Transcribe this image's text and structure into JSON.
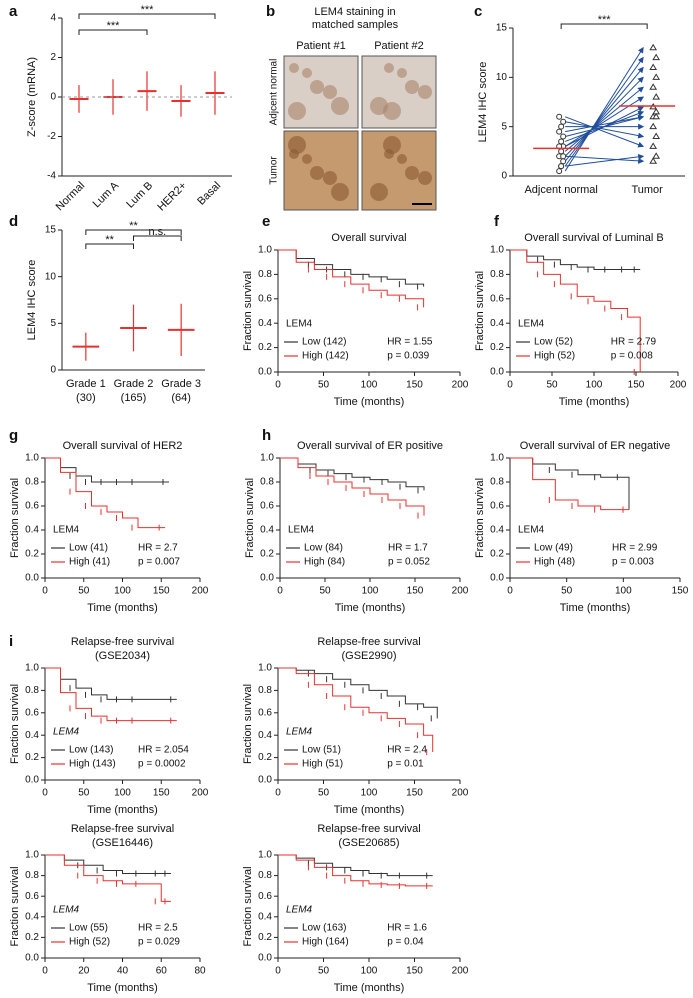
{
  "chart_data": [
    {
      "type": "dot",
      "panel": "a",
      "ylabel": "Z-score (mRNA)",
      "categories": [
        "Normal",
        "Lum A",
        "Lum B",
        "HER2+",
        "Basal"
      ],
      "values": [
        -0.1,
        0,
        0.3,
        -0.2,
        0.2
      ],
      "errors": [
        0.7,
        0.9,
        1.0,
        0.8,
        1.1
      ],
      "color": "#e8312f",
      "ylim": [
        -4,
        4
      ],
      "yticks": [
        -4,
        -2,
        0,
        2,
        4
      ],
      "annotations": [
        "***",
        "***"
      ]
    },
    {
      "type": "image",
      "panel": "b",
      "title": [
        "LEM4 staining in",
        "matched samples"
      ],
      "columns": [
        "Patient #1",
        "Patient #2"
      ],
      "rows": [
        "Adjcent normal",
        "Tumor"
      ]
    },
    {
      "type": "paired",
      "panel": "c",
      "ylabel": "LEM4 IHC score",
      "categories": [
        "Adjcent normal",
        "Tumor"
      ],
      "values_before": [
        0.5,
        1,
        1.5,
        2,
        2.5,
        3,
        3,
        3.5,
        4,
        4.5,
        5,
        5.5,
        6,
        1,
        2
      ],
      "values_after": [
        13,
        12,
        11,
        10,
        9,
        8,
        7,
        6.5,
        6,
        6,
        5,
        4,
        3,
        2,
        1.5
      ],
      "means": [
        2.8,
        7.1
      ],
      "color": "#1f4e9c",
      "mean_color": "#e8312f",
      "ylim": [
        0,
        15
      ],
      "yticks": [
        0,
        5,
        10,
        15
      ],
      "annotations": [
        "***"
      ]
    },
    {
      "type": "dot",
      "panel": "d",
      "ylabel": "LEM4 IHC score",
      "categories": [
        "Grade 1",
        "Grade 2",
        "Grade 3"
      ],
      "category_sublabels": [
        "(30)",
        "(165)",
        "(64)"
      ],
      "values": [
        2.5,
        4.5,
        4.3
      ],
      "errors": [
        1.5,
        2.5,
        2.8
      ],
      "color": "#e8312f",
      "ylim": [
        0,
        15
      ],
      "yticks": [
        0,
        5,
        10,
        15
      ],
      "annotations": [
        "**",
        "**",
        "n.s."
      ]
    },
    {
      "type": "survival",
      "panel": "e",
      "title": "Overall survival",
      "xlabel": "Time (months)",
      "ylabel": "Fraction survival",
      "legend_title": "LEM4",
      "hr": "HR = 1.55",
      "p": "p = 0.039",
      "xlim": [
        0,
        200
      ],
      "xticks": [
        0,
        50,
        100,
        150,
        200
      ],
      "ylim": [
        0,
        1
      ],
      "yticks": [
        {
          "value": 0,
          "label": "0.0"
        },
        {
          "value": 0.2,
          "label": "0.2"
        },
        {
          "value": 0.4,
          "label": "0.4"
        },
        {
          "value": 0.6,
          "label": "0.6"
        },
        {
          "value": 0.8,
          "label": "0.8"
        },
        {
          "value": 1,
          "label": "1.0"
        }
      ],
      "series": [
        {
          "name": "Low (142)",
          "color": "#333333",
          "x": [
            0,
            20,
            40,
            60,
            80,
            100,
            120,
            140,
            160
          ],
          "values": [
            1,
            0.93,
            0.88,
            0.84,
            0.8,
            0.78,
            0.76,
            0.72,
            0.7
          ]
        },
        {
          "name": "High (142)",
          "color": "#e8312f",
          "x": [
            0,
            20,
            40,
            60,
            80,
            100,
            120,
            140,
            160
          ],
          "values": [
            1,
            0.9,
            0.84,
            0.78,
            0.72,
            0.67,
            0.63,
            0.6,
            0.53
          ]
        }
      ]
    },
    {
      "type": "survival",
      "panel": "f",
      "title": "Overall survival of Luminal B",
      "xlabel": "Time (months)",
      "ylabel": "Fraction survival",
      "legend_title": "LEM4",
      "hr": "HR = 2.79",
      "p": "p = 0.008",
      "xlim": [
        0,
        200
      ],
      "xticks": [
        0,
        50,
        100,
        150,
        200
      ],
      "ylim": [
        0,
        1
      ],
      "yticks": [
        {
          "value": 0,
          "label": "0.0"
        },
        {
          "value": 0.2,
          "label": "0.2"
        },
        {
          "value": 0.4,
          "label": "0.4"
        },
        {
          "value": 0.6,
          "label": "0.6"
        },
        {
          "value": 0.8,
          "label": "0.8"
        },
        {
          "value": 1,
          "label": "1.0"
        }
      ],
      "series": [
        {
          "name": "Low (52)",
          "color": "#333333",
          "x": [
            0,
            20,
            40,
            60,
            80,
            100,
            120,
            140,
            155
          ],
          "values": [
            1,
            0.95,
            0.92,
            0.88,
            0.86,
            0.84,
            0.84,
            0.84,
            0.84
          ]
        },
        {
          "name": "High (52)",
          "color": "#e8312f",
          "x": [
            0,
            20,
            40,
            60,
            80,
            100,
            120,
            140,
            155
          ],
          "values": [
            1,
            0.9,
            0.8,
            0.72,
            0.62,
            0.58,
            0.52,
            0.45,
            0
          ]
        }
      ]
    },
    {
      "type": "survival",
      "panel": "g",
      "title": "Overall survival of HER2",
      "xlabel": "Time (months)",
      "ylabel": "Fraction survival",
      "legend_title": "LEM4",
      "hr": "HR = 2.7",
      "p": "p = 0.007",
      "xlim": [
        0,
        200
      ],
      "xticks": [
        0,
        50,
        100,
        150,
        200
      ],
      "ylim": [
        0,
        1
      ],
      "yticks": [
        {
          "value": 0,
          "label": "0.0"
        },
        {
          "value": 0.2,
          "label": "0.2"
        },
        {
          "value": 0.4,
          "label": "0.4"
        },
        {
          "value": 0.6,
          "label": "0.6"
        },
        {
          "value": 0.8,
          "label": "0.8"
        },
        {
          "value": 1,
          "label": "1.0"
        }
      ],
      "series": [
        {
          "name": "Low (41)",
          "color": "#333333",
          "x": [
            0,
            20,
            40,
            60,
            80,
            100,
            120,
            160
          ],
          "values": [
            1,
            0.92,
            0.85,
            0.8,
            0.8,
            0.8,
            0.8,
            0.8
          ]
        },
        {
          "name": "High (41)",
          "color": "#e8312f",
          "x": [
            0,
            20,
            40,
            60,
            80,
            100,
            120,
            155
          ],
          "values": [
            1,
            0.88,
            0.72,
            0.6,
            0.55,
            0.5,
            0.42,
            0.42
          ]
        }
      ]
    },
    {
      "type": "survival",
      "panel": "h",
      "title": "Overall survival of ER positive",
      "xlabel": "Time (months)",
      "ylabel": "Fraction survival",
      "legend_title": "LEM4",
      "hr": "HR = 1.7",
      "p": "p = 0.052",
      "xlim": [
        0,
        200
      ],
      "xticks": [
        0,
        50,
        100,
        150,
        200
      ],
      "ylim": [
        0,
        1
      ],
      "yticks": [
        {
          "value": 0,
          "label": "0.0"
        },
        {
          "value": 0.2,
          "label": "0.2"
        },
        {
          "value": 0.4,
          "label": "0.4"
        },
        {
          "value": 0.6,
          "label": "0.6"
        },
        {
          "value": 0.8,
          "label": "0.8"
        },
        {
          "value": 1,
          "label": "1.0"
        }
      ],
      "series": [
        {
          "name": "Low (84)",
          "color": "#333333",
          "x": [
            0,
            20,
            40,
            60,
            80,
            100,
            120,
            140,
            160
          ],
          "values": [
            1,
            0.95,
            0.9,
            0.87,
            0.84,
            0.82,
            0.8,
            0.76,
            0.73
          ]
        },
        {
          "name": "High (84)",
          "color": "#e8312f",
          "x": [
            0,
            20,
            40,
            60,
            80,
            100,
            120,
            140,
            160
          ],
          "values": [
            1,
            0.92,
            0.85,
            0.8,
            0.75,
            0.7,
            0.65,
            0.6,
            0.52
          ]
        }
      ]
    },
    {
      "type": "survival",
      "title": "Overall survival of ER negative",
      "xlabel": "Time (months)",
      "ylabel": "Fraction survival",
      "legend_title": "LEM4",
      "hr": "HR = 2.99",
      "p": "p = 0.003",
      "xlim": [
        0,
        150
      ],
      "xticks": [
        0,
        50,
        100,
        150
      ],
      "ylim": [
        0,
        1
      ],
      "yticks": [
        {
          "value": 0,
          "label": "0.0"
        },
        {
          "value": 0.2,
          "label": "0.2"
        },
        {
          "value": 0.4,
          "label": "0.4"
        },
        {
          "value": 0.6,
          "label": "0.6"
        },
        {
          "value": 0.8,
          "label": "0.8"
        },
        {
          "value": 1,
          "label": "1.0"
        }
      ],
      "series": [
        {
          "name": "Low (49)",
          "color": "#333333",
          "x": [
            0,
            20,
            40,
            60,
            80,
            100,
            105
          ],
          "values": [
            1,
            0.95,
            0.9,
            0.86,
            0.84,
            0.84,
            0.57
          ]
        },
        {
          "name": "High (48)",
          "color": "#e8312f",
          "x": [
            0,
            20,
            40,
            60,
            80,
            105
          ],
          "values": [
            1,
            0.82,
            0.65,
            0.6,
            0.57,
            0.57
          ]
        }
      ]
    },
    {
      "type": "survival",
      "panel": "i",
      "title": "Relapse-free survival",
      "subtitle": "(GSE2034)",
      "xlabel": "Time (months)",
      "ylabel": "Fraction survival",
      "legend_title": "LEM4",
      "hr": "HR = 2.054",
      "p": "p = 0.0002",
      "xlim": [
        0,
        200
      ],
      "xticks": [
        0,
        50,
        100,
        150,
        200
      ],
      "ylim": [
        0,
        1
      ],
      "yticks": [
        {
          "value": 0,
          "label": "0.0"
        },
        {
          "value": 0.2,
          "label": "0.2"
        },
        {
          "value": 0.4,
          "label": "0.4"
        },
        {
          "value": 0.6,
          "label": "0.6"
        },
        {
          "value": 0.8,
          "label": "0.8"
        },
        {
          "value": 1,
          "label": "1.0"
        }
      ],
      "series": [
        {
          "name": "Low (143)",
          "color": "#333333",
          "x": [
            0,
            20,
            40,
            60,
            80,
            100,
            120,
            170
          ],
          "values": [
            1,
            0.9,
            0.82,
            0.76,
            0.72,
            0.72,
            0.72,
            0.72
          ]
        },
        {
          "name": "High (143)",
          "color": "#e8312f",
          "x": [
            0,
            20,
            40,
            60,
            80,
            100,
            120,
            170
          ],
          "values": [
            1,
            0.78,
            0.64,
            0.57,
            0.53,
            0.53,
            0.53,
            0.53
          ]
        }
      ]
    },
    {
      "type": "survival",
      "title": "Relapse-free survival",
      "subtitle": "(GSE2990)",
      "xlabel": "Time (months)",
      "ylabel": "Fraction survival",
      "legend_title": "LEM4",
      "hr": "HR = 2.4",
      "p": "p = 0.01",
      "xlim": [
        0,
        200
      ],
      "xticks": [
        0,
        50,
        100,
        150,
        200
      ],
      "ylim": [
        0,
        1
      ],
      "yticks": [
        {
          "value": 0,
          "label": "0.0"
        },
        {
          "value": 0.2,
          "label": "0.2"
        },
        {
          "value": 0.4,
          "label": "0.4"
        },
        {
          "value": 0.6,
          "label": "0.6"
        },
        {
          "value": 0.8,
          "label": "0.8"
        },
        {
          "value": 1,
          "label": "1.0"
        }
      ],
      "series": [
        {
          "name": "Low (51)",
          "color": "#333333",
          "x": [
            0,
            20,
            40,
            60,
            80,
            100,
            120,
            140,
            160,
            175
          ],
          "values": [
            1,
            0.98,
            0.95,
            0.9,
            0.85,
            0.8,
            0.75,
            0.68,
            0.65,
            0.55
          ]
        },
        {
          "name": "High (51)",
          "color": "#e8312f",
          "x": [
            0,
            20,
            40,
            60,
            80,
            100,
            120,
            140,
            160,
            170
          ],
          "values": [
            1,
            0.95,
            0.85,
            0.75,
            0.65,
            0.6,
            0.55,
            0.5,
            0.4,
            0.25
          ]
        }
      ]
    },
    {
      "type": "survival",
      "title": "Relapse-free survival",
      "subtitle": "(GSE16446)",
      "xlabel": "Time (months)",
      "ylabel": "Fraction survival",
      "legend_title": "LEM4",
      "hr": "HR = 2.5",
      "p": "p = 0.029",
      "xlim": [
        0,
        80
      ],
      "xticks": [
        0,
        20,
        40,
        60,
        80
      ],
      "ylim": [
        0,
        1
      ],
      "yticks": [
        {
          "value": 0,
          "label": "0.0"
        },
        {
          "value": 0.2,
          "label": "0.2"
        },
        {
          "value": 0.4,
          "label": "0.4"
        },
        {
          "value": 0.6,
          "label": "0.6"
        },
        {
          "value": 0.8,
          "label": "0.8"
        },
        {
          "value": 1,
          "label": "1.0"
        }
      ],
      "series": [
        {
          "name": "Low (55)",
          "color": "#333333",
          "x": [
            0,
            10,
            20,
            30,
            40,
            50,
            60,
            65
          ],
          "values": [
            1,
            0.95,
            0.9,
            0.85,
            0.82,
            0.82,
            0.82,
            0.82
          ]
        },
        {
          "name": "High (52)",
          "color": "#e8312f",
          "x": [
            0,
            10,
            20,
            30,
            40,
            50,
            60,
            65
          ],
          "values": [
            1,
            0.9,
            0.8,
            0.75,
            0.72,
            0.72,
            0.55,
            0.55
          ]
        }
      ]
    },
    {
      "type": "survival",
      "title": "Relapse-free survival",
      "subtitle": "(GSE20685)",
      "xlabel": "Time (months)",
      "ylabel": "Fraction survival",
      "legend_title": "LEM4",
      "hr": "HR = 1.6",
      "p": "p = 0.04",
      "xlim": [
        0,
        200
      ],
      "xticks": [
        0,
        50,
        100,
        150,
        200
      ],
      "ylim": [
        0,
        1
      ],
      "yticks": [
        {
          "value": 0,
          "label": "0.0"
        },
        {
          "value": 0.2,
          "label": "0.2"
        },
        {
          "value": 0.4,
          "label": "0.4"
        },
        {
          "value": 0.6,
          "label": "0.6"
        },
        {
          "value": 0.8,
          "label": "0.8"
        },
        {
          "value": 1,
          "label": "1.0"
        }
      ],
      "series": [
        {
          "name": "Low (163)",
          "color": "#333333",
          "x": [
            0,
            20,
            40,
            60,
            80,
            100,
            120,
            140,
            170
          ],
          "values": [
            1,
            0.97,
            0.92,
            0.88,
            0.85,
            0.82,
            0.8,
            0.8,
            0.8
          ]
        },
        {
          "name": "High (164)",
          "color": "#e8312f",
          "x": [
            0,
            20,
            40,
            60,
            80,
            100,
            120,
            140,
            170
          ],
          "values": [
            1,
            0.95,
            0.88,
            0.8,
            0.75,
            0.72,
            0.71,
            0.7,
            0.7
          ]
        }
      ]
    }
  ]
}
